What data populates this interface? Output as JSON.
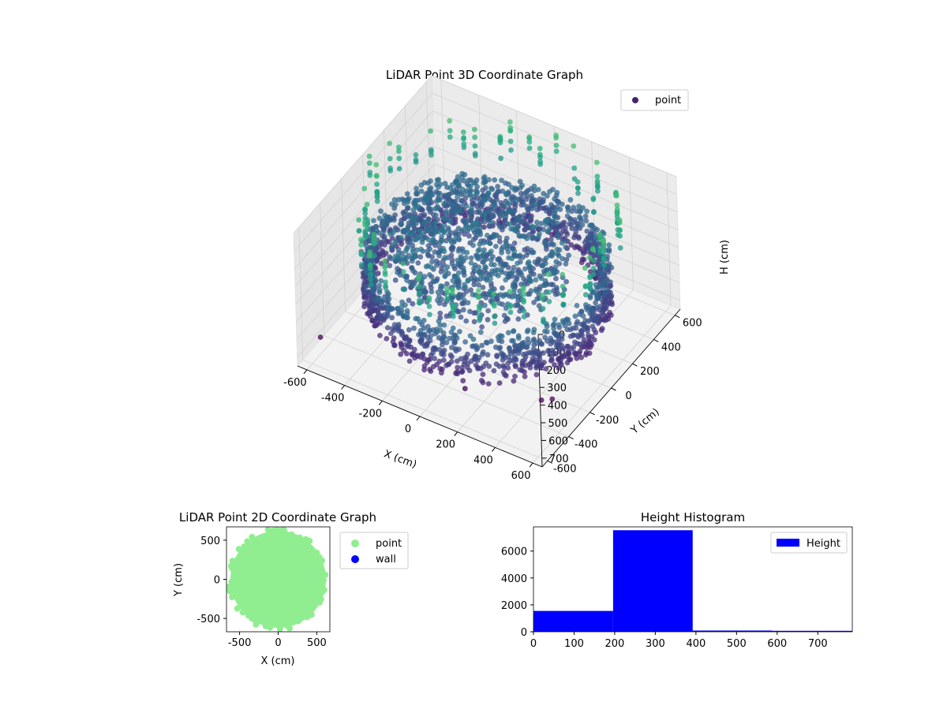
{
  "chart_data": [
    {
      "type": "scatter3d",
      "title": "LiDAR Point 3D Coordinate Graph",
      "xlabel": "X (cm)",
      "ylabel": "Y (cm)",
      "zlabel": "H (cm)",
      "xlim": [
        -650,
        650
      ],
      "ylim": [
        -650,
        650
      ],
      "zlim": [
        0,
        750
      ],
      "z_inverted": true,
      "xticks": [
        "-600",
        "-400",
        "-200",
        "0",
        "200",
        "400",
        "600"
      ],
      "yticks": [
        "-600",
        "-400",
        "-200",
        "0",
        "200",
        "400",
        "600"
      ],
      "zticks": [
        "0",
        "100",
        "200",
        "300",
        "400",
        "500",
        "600",
        "700"
      ],
      "legend": {
        "position": "top-right",
        "entries": [
          {
            "label": "point",
            "color": "#46226e"
          }
        ]
      },
      "colormap": "viridis",
      "grid": true,
      "structures": {
        "ring": {
          "radius": 550,
          "h_min": 280,
          "h_max": 550
        },
        "inner_blob": {
          "radius": 420,
          "h_min": 240,
          "h_max": 420
        },
        "posts": {
          "radius_min": 540,
          "radius_max": 640,
          "h_min": 0,
          "h_max": 200
        },
        "outliers": [
          {
            "x": 100,
            "y": -400,
            "h": 720
          },
          {
            "x": 450,
            "y": -300,
            "h": 700
          },
          {
            "x": 520,
            "y": -320,
            "h": 650
          },
          {
            "x": -640,
            "y": -450,
            "h": 720
          }
        ]
      }
    },
    {
      "type": "scatter",
      "title": "LiDAR Point 2D Coordinate Graph",
      "xlabel": "X (cm)",
      "ylabel": "Y (cm)",
      "xlim": [
        -670,
        670
      ],
      "ylim": [
        -670,
        670
      ],
      "xticks": [
        -500,
        0,
        500
      ],
      "yticks": [
        -500,
        0,
        500
      ],
      "series": [
        {
          "name": "point",
          "color": "#90ee90",
          "shape": "disc",
          "radius": 620
        },
        {
          "name": "wall",
          "color": "#0000ff",
          "points": []
        }
      ],
      "legend": {
        "position": "outside-right"
      }
    },
    {
      "type": "bar",
      "subtype": "histogram",
      "title": "Height Histogram",
      "xlim": [
        0,
        785
      ],
      "ylim": [
        0,
        7800
      ],
      "xticks": [
        0,
        100,
        200,
        300,
        400,
        500,
        600,
        700
      ],
      "yticks": [
        0,
        2000,
        4000,
        6000
      ],
      "bins": [
        {
          "x0": 0,
          "x1": 196,
          "count": 1550
        },
        {
          "x0": 196,
          "x1": 392,
          "count": 7550
        },
        {
          "x0": 392,
          "x1": 588,
          "count": 90
        },
        {
          "x0": 588,
          "x1": 785,
          "count": 70
        }
      ],
      "series": [
        {
          "name": "Height",
          "color": "#0000ff"
        }
      ],
      "legend": {
        "position": "top-right"
      }
    }
  ]
}
